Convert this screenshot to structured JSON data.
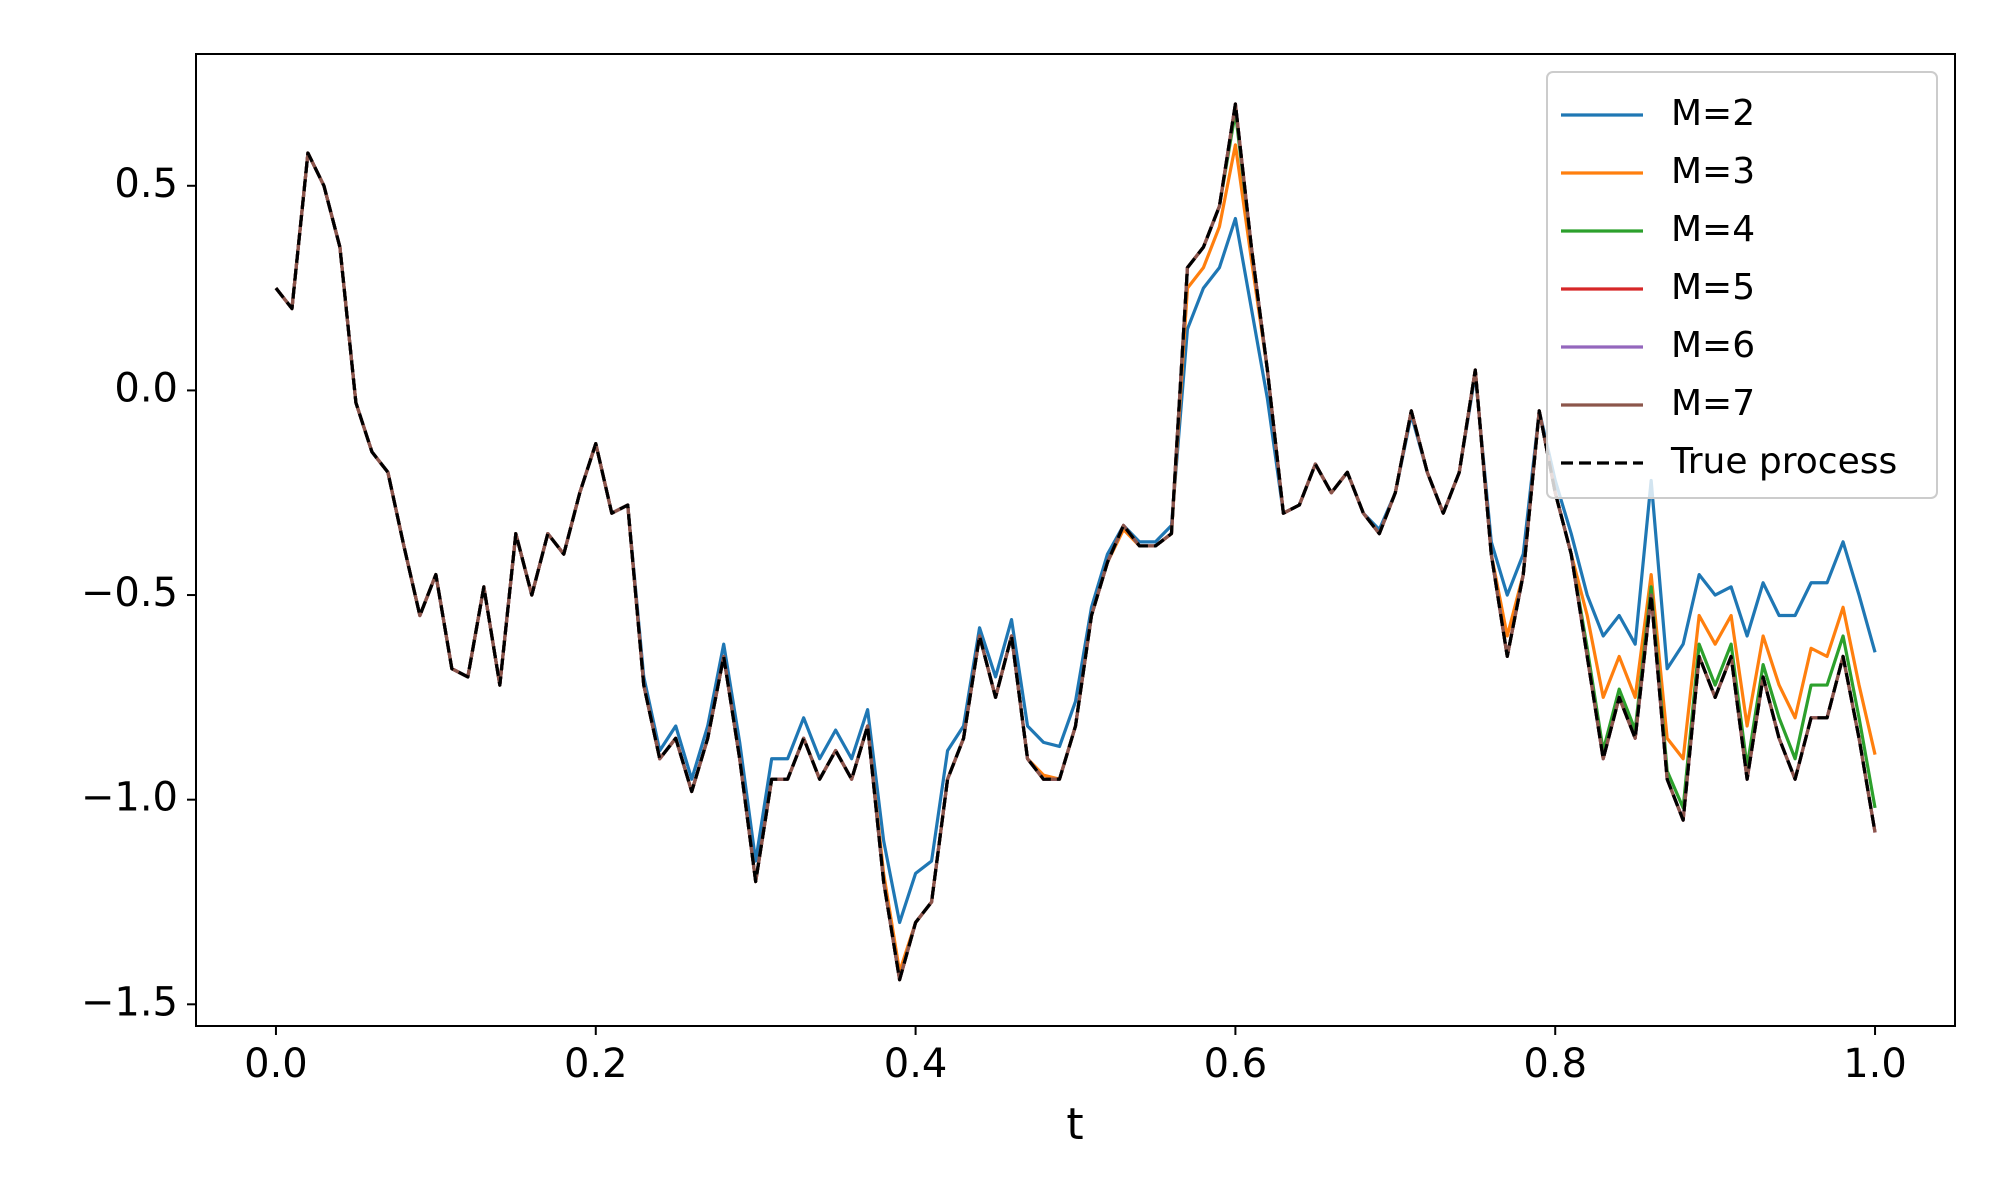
{
  "chart_data": {
    "type": "line",
    "xlabel": "t",
    "x": [
      0,
      0.01,
      0.02,
      0.03,
      0.04,
      0.05,
      0.06,
      0.07,
      0.08,
      0.09,
      0.1,
      0.11,
      0.12,
      0.13,
      0.14,
      0.15,
      0.16,
      0.17,
      0.18,
      0.19,
      0.2,
      0.21,
      0.22,
      0.23,
      0.24,
      0.25,
      0.26,
      0.27,
      0.28,
      0.29,
      0.3,
      0.31,
      0.32,
      0.33,
      0.34,
      0.35,
      0.36,
      0.37,
      0.38,
      0.39,
      0.4,
      0.41,
      0.42,
      0.43,
      0.44,
      0.45,
      0.46,
      0.47,
      0.48,
      0.49,
      0.5,
      0.51,
      0.52,
      0.53,
      0.54,
      0.55,
      0.56,
      0.57,
      0.58,
      0.59,
      0.6,
      0.61,
      0.62,
      0.63,
      0.64,
      0.65,
      0.66,
      0.67,
      0.68,
      0.69,
      0.7,
      0.71,
      0.72,
      0.73,
      0.74,
      0.75,
      0.76,
      0.77,
      0.78,
      0.79,
      0.8,
      0.81,
      0.82,
      0.83,
      0.84,
      0.85,
      0.86,
      0.87,
      0.88,
      0.89,
      0.9,
      0.91,
      0.92,
      0.93,
      0.94,
      0.95,
      0.96,
      0.97,
      0.98,
      0.99,
      1
    ],
    "series": [
      {
        "name": "M=2",
        "color": "#1f77b4",
        "values": [
          0.25,
          0.2,
          0.58,
          0.5,
          0.35,
          -0.03,
          -0.15,
          -0.2,
          -0.38,
          -0.55,
          -0.45,
          -0.68,
          -0.7,
          -0.48,
          -0.72,
          -0.35,
          -0.5,
          -0.35,
          -0.4,
          -0.25,
          -0.13,
          -0.3,
          -0.28,
          -0.7,
          -0.88,
          -0.82,
          -0.95,
          -0.82,
          -0.62,
          -0.86,
          -1.15,
          -0.9,
          -0.9,
          -0.8,
          -0.9,
          -0.83,
          -0.9,
          -0.78,
          -1.1,
          -1.3,
          -1.18,
          -1.15,
          -0.88,
          -0.82,
          -0.58,
          -0.7,
          -0.56,
          -0.82,
          -0.86,
          -0.87,
          -0.76,
          -0.53,
          -0.4,
          -0.33,
          -0.37,
          -0.37,
          -0.33,
          0.15,
          0.25,
          0.3,
          0.42,
          0.2,
          -0.02,
          -0.3,
          -0.28,
          -0.18,
          -0.25,
          -0.2,
          -0.3,
          -0.34,
          -0.25,
          -0.06,
          -0.2,
          -0.3,
          -0.2,
          0.04,
          -0.37,
          -0.5,
          -0.4,
          -0.05,
          -0.22,
          -0.35,
          -0.5,
          -0.6,
          -0.55,
          -0.62,
          -0.22,
          -0.68,
          -0.62,
          -0.45,
          -0.5,
          -0.48,
          -0.6,
          -0.47,
          -0.55,
          -0.55,
          -0.47,
          -0.47,
          -0.37,
          -0.5,
          -0.64
        ]
      },
      {
        "name": "M=3",
        "color": "#ff7f0e",
        "values": [
          0.25,
          0.2,
          0.58,
          0.5,
          0.35,
          -0.03,
          -0.15,
          -0.2,
          -0.38,
          -0.55,
          -0.45,
          -0.68,
          -0.7,
          -0.48,
          -0.72,
          -0.35,
          -0.5,
          -0.35,
          -0.4,
          -0.25,
          -0.13,
          -0.3,
          -0.28,
          -0.72,
          -0.9,
          -0.85,
          -0.98,
          -0.85,
          -0.65,
          -0.9,
          -1.2,
          -0.95,
          -0.95,
          -0.85,
          -0.95,
          -0.88,
          -0.95,
          -0.82,
          -1.18,
          -1.42,
          -1.3,
          -1.25,
          -0.95,
          -0.85,
          -0.6,
          -0.75,
          -0.6,
          -0.9,
          -0.94,
          -0.95,
          -0.82,
          -0.55,
          -0.42,
          -0.34,
          -0.38,
          -0.38,
          -0.35,
          0.25,
          0.3,
          0.4,
          0.6,
          0.32,
          0.05,
          -0.3,
          -0.28,
          -0.18,
          -0.25,
          -0.2,
          -0.3,
          -0.35,
          -0.25,
          -0.05,
          -0.2,
          -0.3,
          -0.2,
          0.05,
          -0.4,
          -0.6,
          -0.45,
          -0.05,
          -0.25,
          -0.4,
          -0.55,
          -0.75,
          -0.65,
          -0.75,
          -0.45,
          -0.85,
          -0.9,
          -0.55,
          -0.62,
          -0.55,
          -0.82,
          -0.6,
          -0.72,
          -0.8,
          -0.63,
          -0.65,
          -0.53,
          -0.72,
          -0.89
        ]
      },
      {
        "name": "M=4",
        "color": "#2ca02c",
        "values": [
          0.25,
          0.2,
          0.58,
          0.5,
          0.35,
          -0.03,
          -0.15,
          -0.2,
          -0.38,
          -0.55,
          -0.45,
          -0.68,
          -0.7,
          -0.48,
          -0.72,
          -0.35,
          -0.5,
          -0.35,
          -0.4,
          -0.25,
          -0.13,
          -0.3,
          -0.28,
          -0.72,
          -0.9,
          -0.85,
          -0.98,
          -0.85,
          -0.65,
          -0.9,
          -1.2,
          -0.95,
          -0.95,
          -0.85,
          -0.95,
          -0.88,
          -0.95,
          -0.82,
          -1.2,
          -1.44,
          -1.3,
          -1.25,
          -0.95,
          -0.85,
          -0.6,
          -0.75,
          -0.6,
          -0.9,
          -0.95,
          -0.95,
          -0.82,
          -0.55,
          -0.42,
          -0.33,
          -0.38,
          -0.38,
          -0.35,
          0.3,
          0.35,
          0.45,
          0.68,
          0.35,
          0.05,
          -0.3,
          -0.28,
          -0.18,
          -0.25,
          -0.2,
          -0.3,
          -0.35,
          -0.25,
          -0.05,
          -0.2,
          -0.3,
          -0.2,
          0.05,
          -0.4,
          -0.65,
          -0.45,
          -0.05,
          -0.25,
          -0.4,
          -0.63,
          -0.88,
          -0.73,
          -0.83,
          -0.48,
          -0.93,
          -1.02,
          -0.62,
          -0.72,
          -0.62,
          -0.92,
          -0.67,
          -0.8,
          -0.9,
          -0.72,
          -0.72,
          -0.6,
          -0.8,
          -1.02
        ]
      },
      {
        "name": "M=5",
        "color": "#d62728",
        "values": [
          0.25,
          0.2,
          0.58,
          0.5,
          0.35,
          -0.03,
          -0.15,
          -0.2,
          -0.38,
          -0.55,
          -0.45,
          -0.68,
          -0.7,
          -0.48,
          -0.72,
          -0.35,
          -0.5,
          -0.35,
          -0.4,
          -0.25,
          -0.13,
          -0.3,
          -0.28,
          -0.72,
          -0.9,
          -0.85,
          -0.98,
          -0.85,
          -0.65,
          -0.9,
          -1.2,
          -0.95,
          -0.95,
          -0.85,
          -0.95,
          -0.88,
          -0.95,
          -0.82,
          -1.2,
          -1.44,
          -1.3,
          -1.25,
          -0.95,
          -0.85,
          -0.6,
          -0.75,
          -0.6,
          -0.9,
          -0.95,
          -0.95,
          -0.82,
          -0.55,
          -0.42,
          -0.33,
          -0.38,
          -0.38,
          -0.35,
          0.3,
          0.35,
          0.45,
          0.7,
          0.35,
          0.05,
          -0.3,
          -0.28,
          -0.18,
          -0.25,
          -0.2,
          -0.3,
          -0.35,
          -0.25,
          -0.05,
          -0.2,
          -0.3,
          -0.2,
          0.05,
          -0.4,
          -0.65,
          -0.45,
          -0.05,
          -0.25,
          -0.4,
          -0.65,
          -0.9,
          -0.75,
          -0.85,
          -0.5,
          -0.95,
          -1.05,
          -0.65,
          -0.75,
          -0.65,
          -0.95,
          -0.7,
          -0.85,
          -0.95,
          -0.8,
          -0.8,
          -0.65,
          -0.85,
          -1.08
        ]
      },
      {
        "name": "M=6",
        "color": "#9467bd",
        "values": [
          0.25,
          0.2,
          0.58,
          0.5,
          0.35,
          -0.03,
          -0.15,
          -0.2,
          -0.38,
          -0.55,
          -0.45,
          -0.68,
          -0.7,
          -0.48,
          -0.72,
          -0.35,
          -0.5,
          -0.35,
          -0.4,
          -0.25,
          -0.13,
          -0.3,
          -0.28,
          -0.72,
          -0.9,
          -0.85,
          -0.98,
          -0.85,
          -0.65,
          -0.9,
          -1.2,
          -0.95,
          -0.95,
          -0.85,
          -0.95,
          -0.88,
          -0.95,
          -0.82,
          -1.2,
          -1.44,
          -1.3,
          -1.25,
          -0.95,
          -0.85,
          -0.6,
          -0.75,
          -0.6,
          -0.9,
          -0.95,
          -0.95,
          -0.82,
          -0.55,
          -0.42,
          -0.33,
          -0.38,
          -0.38,
          -0.35,
          0.3,
          0.35,
          0.45,
          0.7,
          0.35,
          0.05,
          -0.3,
          -0.28,
          -0.18,
          -0.25,
          -0.2,
          -0.3,
          -0.35,
          -0.25,
          -0.05,
          -0.2,
          -0.3,
          -0.2,
          0.05,
          -0.4,
          -0.65,
          -0.45,
          -0.05,
          -0.25,
          -0.4,
          -0.65,
          -0.9,
          -0.75,
          -0.85,
          -0.5,
          -0.95,
          -1.05,
          -0.65,
          -0.75,
          -0.65,
          -0.95,
          -0.7,
          -0.85,
          -0.95,
          -0.8,
          -0.8,
          -0.65,
          -0.85,
          -1.08
        ]
      },
      {
        "name": "M=7",
        "color": "#8c564b",
        "values": [
          0.25,
          0.2,
          0.58,
          0.5,
          0.35,
          -0.03,
          -0.15,
          -0.2,
          -0.38,
          -0.55,
          -0.45,
          -0.68,
          -0.7,
          -0.48,
          -0.72,
          -0.35,
          -0.5,
          -0.35,
          -0.4,
          -0.25,
          -0.13,
          -0.3,
          -0.28,
          -0.72,
          -0.9,
          -0.85,
          -0.98,
          -0.85,
          -0.65,
          -0.9,
          -1.2,
          -0.95,
          -0.95,
          -0.85,
          -0.95,
          -0.88,
          -0.95,
          -0.82,
          -1.2,
          -1.44,
          -1.3,
          -1.25,
          -0.95,
          -0.85,
          -0.6,
          -0.75,
          -0.6,
          -0.9,
          -0.95,
          -0.95,
          -0.82,
          -0.55,
          -0.42,
          -0.33,
          -0.38,
          -0.38,
          -0.35,
          0.3,
          0.35,
          0.45,
          0.7,
          0.35,
          0.05,
          -0.3,
          -0.28,
          -0.18,
          -0.25,
          -0.2,
          -0.3,
          -0.35,
          -0.25,
          -0.05,
          -0.2,
          -0.3,
          -0.2,
          0.05,
          -0.4,
          -0.65,
          -0.45,
          -0.05,
          -0.25,
          -0.4,
          -0.65,
          -0.9,
          -0.75,
          -0.85,
          -0.5,
          -0.95,
          -1.05,
          -0.65,
          -0.75,
          -0.65,
          -0.95,
          -0.7,
          -0.85,
          -0.95,
          -0.8,
          -0.8,
          -0.65,
          -0.85,
          -1.08
        ]
      },
      {
        "name": "True process",
        "color": "#000000",
        "dashed": true,
        "values": [
          0.25,
          0.2,
          0.58,
          0.5,
          0.35,
          -0.03,
          -0.15,
          -0.2,
          -0.38,
          -0.55,
          -0.45,
          -0.68,
          -0.7,
          -0.48,
          -0.72,
          -0.35,
          -0.5,
          -0.35,
          -0.4,
          -0.25,
          -0.13,
          -0.3,
          -0.28,
          -0.72,
          -0.9,
          -0.85,
          -0.98,
          -0.85,
          -0.65,
          -0.9,
          -1.2,
          -0.95,
          -0.95,
          -0.85,
          -0.95,
          -0.88,
          -0.95,
          -0.82,
          -1.2,
          -1.44,
          -1.3,
          -1.25,
          -0.95,
          -0.85,
          -0.6,
          -0.75,
          -0.6,
          -0.9,
          -0.95,
          -0.95,
          -0.82,
          -0.55,
          -0.42,
          -0.33,
          -0.38,
          -0.38,
          -0.35,
          0.3,
          0.35,
          0.45,
          0.7,
          0.35,
          0.05,
          -0.3,
          -0.28,
          -0.18,
          -0.25,
          -0.2,
          -0.3,
          -0.35,
          -0.25,
          -0.05,
          -0.2,
          -0.3,
          -0.2,
          0.05,
          -0.4,
          -0.65,
          -0.45,
          -0.05,
          -0.25,
          -0.4,
          -0.65,
          -0.9,
          -0.75,
          -0.85,
          -0.5,
          -0.95,
          -1.05,
          -0.65,
          -0.75,
          -0.65,
          -0.95,
          -0.7,
          -0.85,
          -0.95,
          -0.8,
          -0.8,
          -0.65,
          -0.85,
          -1.08
        ]
      }
    ],
    "xlim": [
      -0.05,
      1.05
    ],
    "ylim": [
      -1.553,
      0.822
    ],
    "xticks": [
      {
        "value": 0,
        "label": "0.0"
      },
      0.2,
      0.4,
      0.6,
      0.8,
      {
        "value": 1,
        "label": "1.0"
      }
    ],
    "yticks": [
      {
        "value": -1.5,
        "label": "−1.5"
      },
      {
        "value": -1,
        "label": "−1.0"
      },
      {
        "value": -0.5,
        "label": "−0.5"
      },
      {
        "value": 0,
        "label": "0.0"
      },
      0.5
    ],
    "legend": "upper right",
    "grid": false
  }
}
